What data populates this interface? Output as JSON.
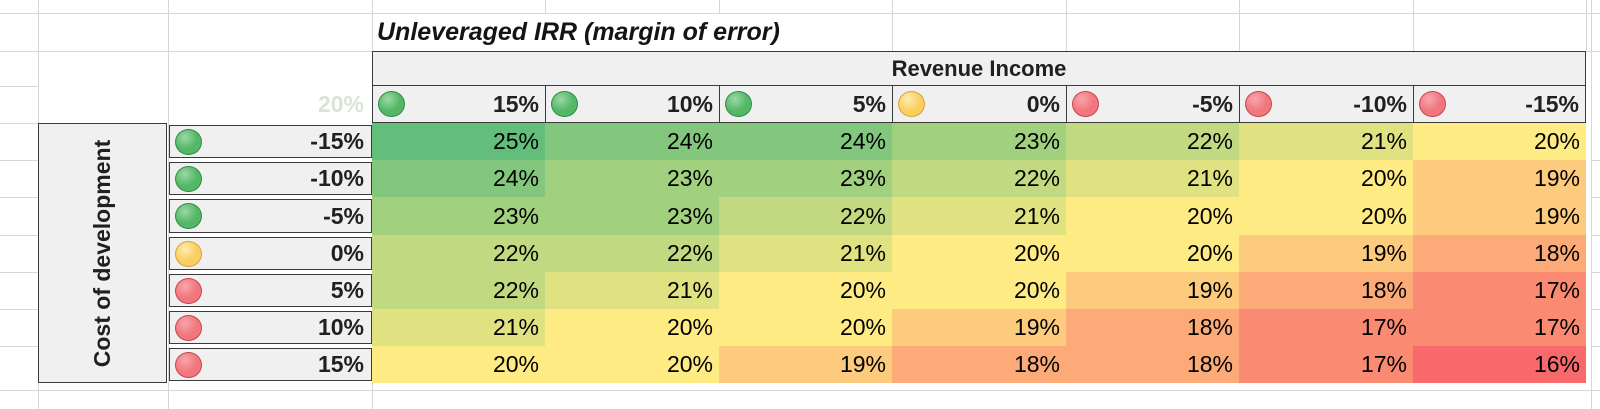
{
  "sheet": {
    "title": "Unleveraged IRR (margin of error)",
    "ghost_value": "20%"
  },
  "chart_data": {
    "type": "heatmap",
    "title": "Unleveraged IRR (margin of error)",
    "column_group_label": "Revenue Income",
    "row_group_label": "Cost of development",
    "columns": [
      {
        "label": "15%",
        "indicator": "green"
      },
      {
        "label": "10%",
        "indicator": "green"
      },
      {
        "label": "5%",
        "indicator": "green"
      },
      {
        "label": "0%",
        "indicator": "yellow"
      },
      {
        "label": "-5%",
        "indicator": "red"
      },
      {
        "label": "-10%",
        "indicator": "red"
      },
      {
        "label": "-15%",
        "indicator": "red"
      }
    ],
    "rows": [
      {
        "label": "-15%",
        "indicator": "green"
      },
      {
        "label": "-10%",
        "indicator": "green"
      },
      {
        "label": "-5%",
        "indicator": "green"
      },
      {
        "label": "0%",
        "indicator": "yellow"
      },
      {
        "label": "5%",
        "indicator": "red"
      },
      {
        "label": "10%",
        "indicator": "red"
      },
      {
        "label": "15%",
        "indicator": "red"
      }
    ],
    "values": [
      [
        25,
        24,
        24,
        23,
        22,
        21,
        20
      ],
      [
        24,
        23,
        23,
        22,
        21,
        20,
        19
      ],
      [
        23,
        23,
        22,
        21,
        20,
        20,
        19
      ],
      [
        22,
        22,
        21,
        20,
        20,
        19,
        18
      ],
      [
        22,
        21,
        20,
        20,
        19,
        18,
        17
      ],
      [
        21,
        20,
        20,
        19,
        18,
        17,
        17
      ],
      [
        20,
        20,
        19,
        18,
        18,
        17,
        16
      ]
    ],
    "value_suffix": "%",
    "color_scale": [
      {
        "value": 16,
        "color": "#F8696B"
      },
      {
        "value": 20,
        "color": "#FFEB84"
      },
      {
        "value": 25,
        "color": "#63BE7B"
      }
    ],
    "indicator_colors": {
      "green": {
        "base": "#53B766",
        "highlight": "#9BD8A6",
        "rim": "#2E8C44"
      },
      "yellow": {
        "base": "#FBCE60",
        "highlight": "#FFEBB0",
        "rim": "#D9A13E"
      },
      "red": {
        "base": "#F1767D",
        "highlight": "#F7A6AB",
        "rim": "#C4454E"
      }
    }
  }
}
